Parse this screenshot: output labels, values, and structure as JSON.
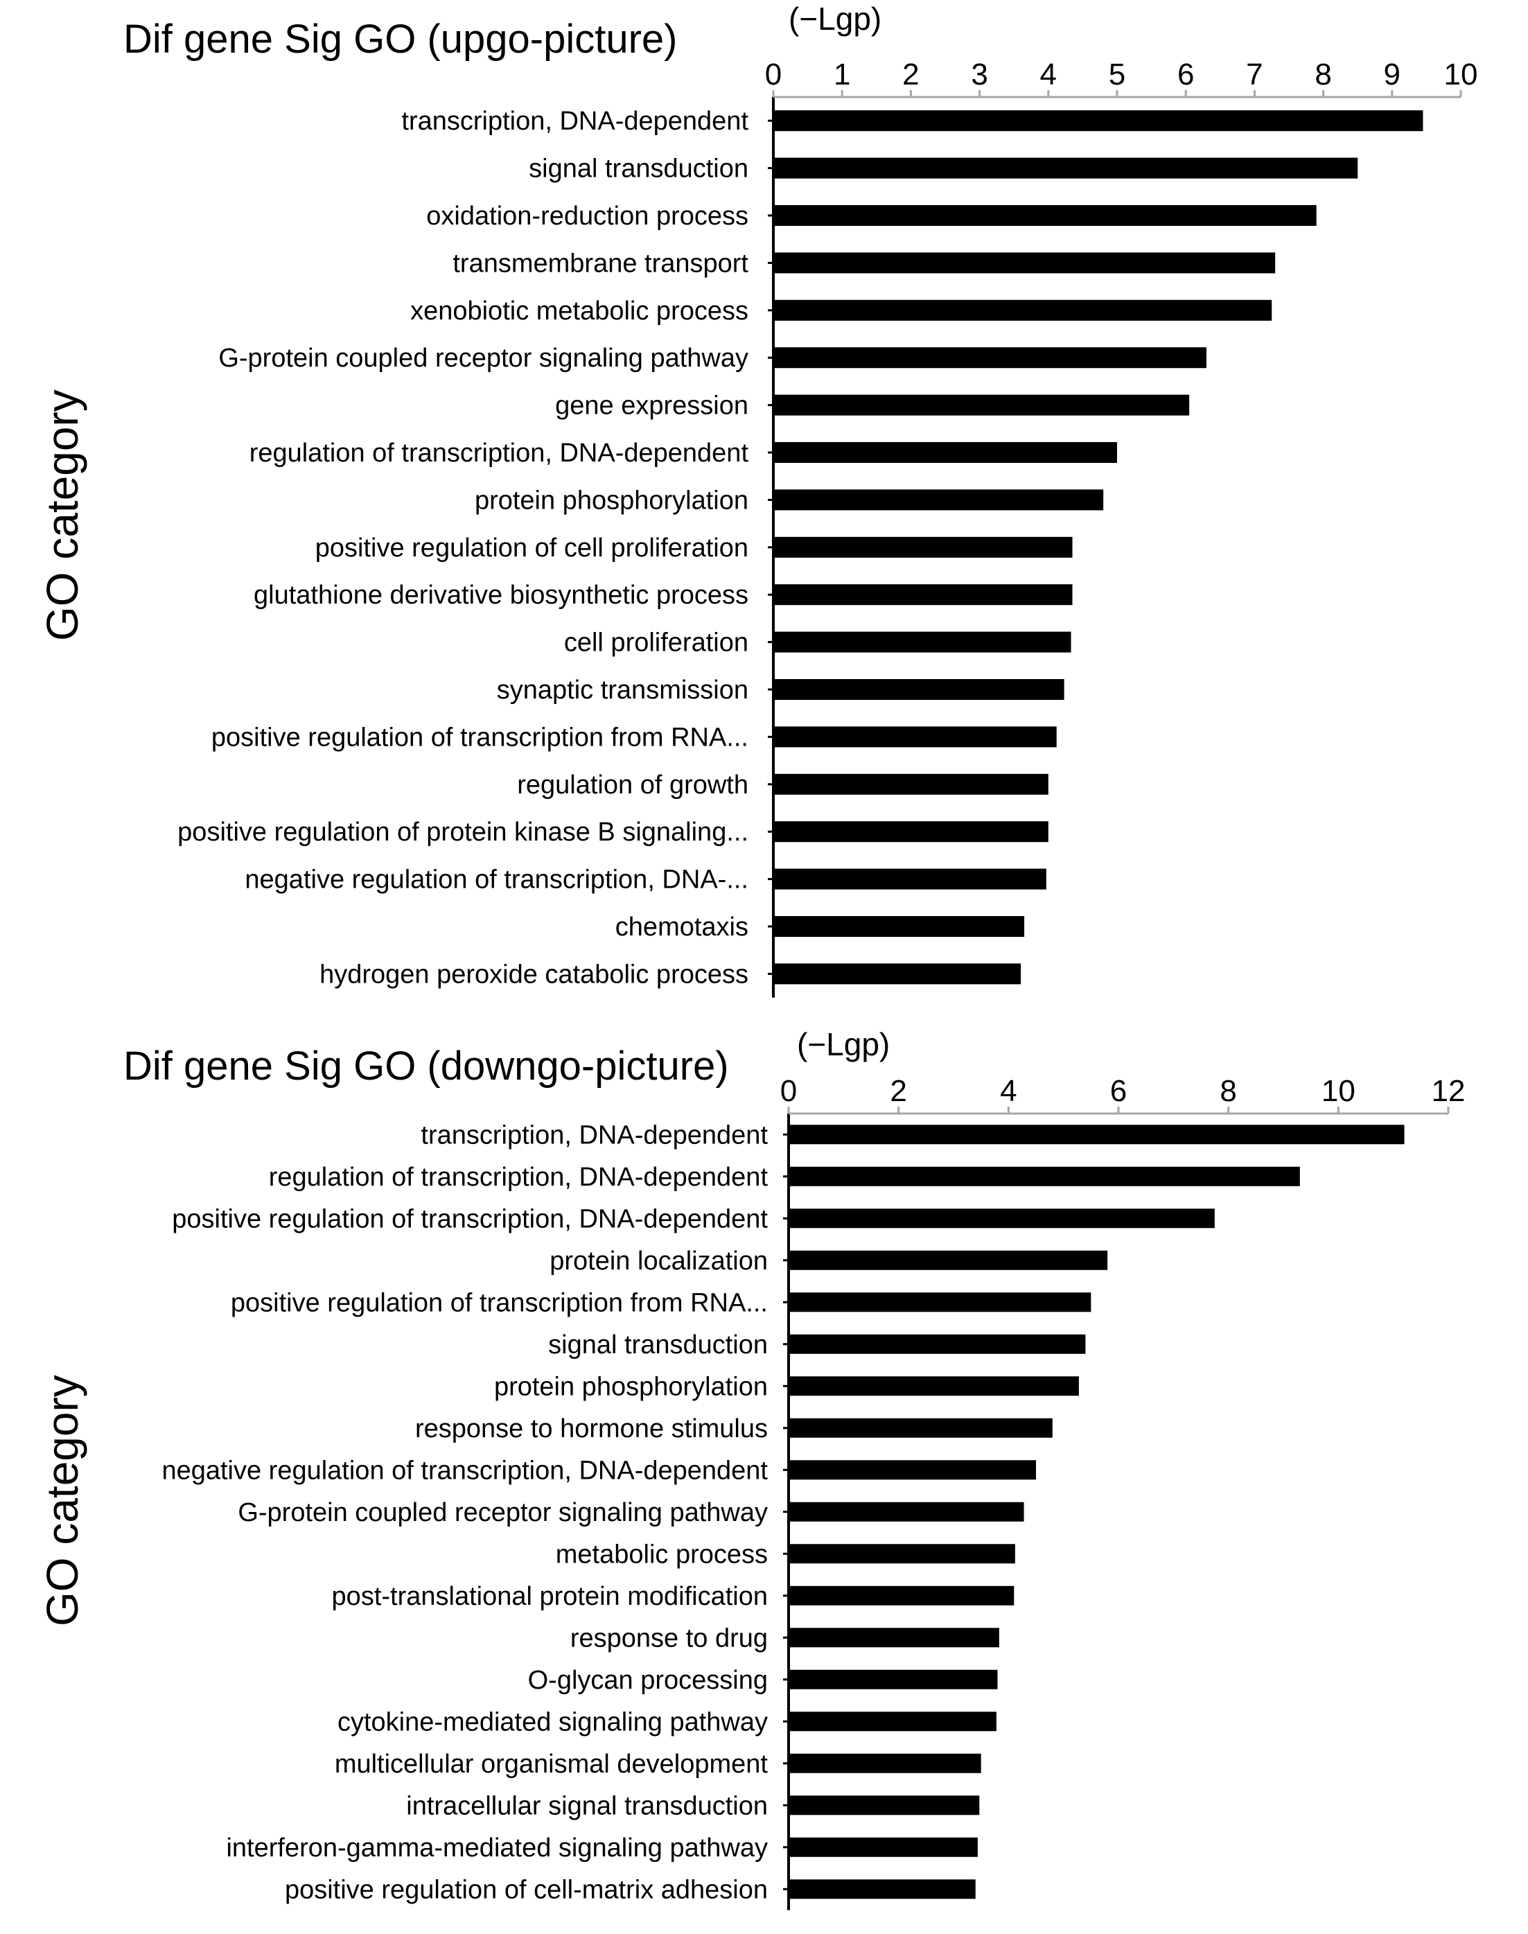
{
  "chart_data": [
    {
      "type": "bar",
      "orientation": "horizontal",
      "title": "Dif gene Sig GO (upgo-picture)",
      "unit_label": "(−Lgp)",
      "ylabel": "GO category",
      "xlim": [
        0,
        10
      ],
      "xticks": [
        "0",
        "1",
        "2",
        "3",
        "4",
        "5",
        "6",
        "7",
        "8",
        "9",
        "10"
      ],
      "x_axis_position": "top",
      "grid": false,
      "bar_color": "#000000",
      "categories": [
        "transcription, DNA-dependent",
        "signal transduction",
        "oxidation-reduction process",
        "transmembrane transport",
        "xenobiotic metabolic process",
        "G-protein coupled receptor signaling pathway",
        "gene expression",
        "regulation of transcription, DNA-dependent",
        "protein phosphorylation",
        "positive regulation of cell proliferation",
        "glutathione derivative biosynthetic process",
        "cell proliferation",
        "synaptic transmission",
        "positive regulation of transcription from RNA...",
        "regulation of growth",
        "positive regulation of protein kinase B signaling...",
        "negative regulation of transcription, DNA-...",
        "chemotaxis",
        "hydrogen peroxide catabolic process"
      ],
      "values": [
        9.45,
        8.5,
        7.9,
        7.3,
        7.25,
        6.3,
        6.05,
        5.0,
        4.8,
        4.35,
        4.35,
        4.33,
        4.23,
        4.12,
        4.0,
        4.0,
        3.97,
        3.65,
        3.6
      ]
    },
    {
      "type": "bar",
      "orientation": "horizontal",
      "title": "Dif gene Sig GO (downgo-picture)",
      "unit_label": "(−Lgp)",
      "ylabel": "GO category",
      "xlim": [
        0,
        12
      ],
      "xticks": [
        "0",
        "2",
        "4",
        "6",
        "8",
        "10",
        "12"
      ],
      "x_axis_position": "top",
      "grid": false,
      "bar_color": "#000000",
      "categories": [
        "transcription, DNA-dependent",
        "regulation of transcription, DNA-dependent",
        "positive regulation of transcription, DNA-dependent",
        "protein localization",
        "positive regulation of transcription from RNA...",
        "signal transduction",
        "protein phosphorylation",
        "response to hormone stimulus",
        "negative regulation of transcription, DNA-dependent",
        "G-protein coupled receptor signaling pathway",
        "metabolic process",
        "post-translational protein modification",
        "response to drug",
        "O-glycan processing",
        "cytokine-mediated signaling pathway",
        "multicellular organismal development",
        "intracellular signal transduction",
        "interferon-gamma-mediated signaling pathway",
        "positive regulation of cell-matrix adhesion"
      ],
      "values": [
        11.2,
        9.3,
        7.75,
        5.8,
        5.5,
        5.4,
        5.28,
        4.8,
        4.5,
        4.28,
        4.12,
        4.1,
        3.83,
        3.8,
        3.78,
        3.5,
        3.47,
        3.44,
        3.4
      ]
    }
  ]
}
